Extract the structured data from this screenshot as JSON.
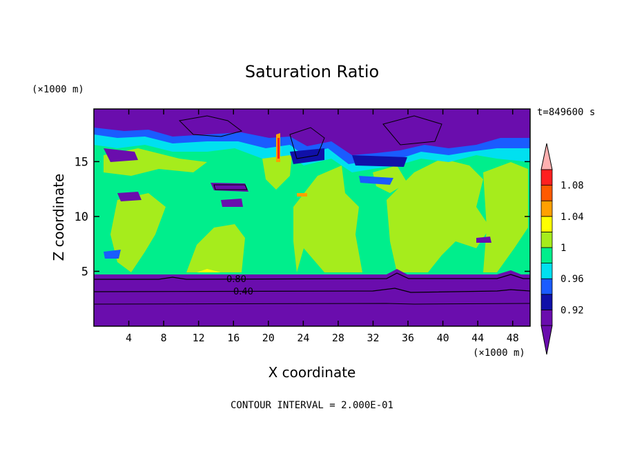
{
  "chart_data": {
    "type": "heatmap",
    "title": "Saturation Ratio",
    "xlabel": "X coordinate",
    "ylabel": "Z coordinate",
    "x_unit": "(×1000 m)",
    "y_unit": "(×1000 m)",
    "time_label": "t=849600 s",
    "footer": "CONTOUR INTERVAL = 2.000E-01",
    "xlim": [
      0,
      50
    ],
    "ylim": [
      0,
      19.8
    ],
    "x_ticks": [
      4,
      8,
      12,
      16,
      20,
      24,
      28,
      32,
      36,
      40,
      44,
      48
    ],
    "y_ticks": [
      5,
      10,
      15
    ],
    "contour_labels": [
      {
        "text": "0.80",
        "x": 16.2,
        "y": 4.4
      },
      {
        "text": "0.40",
        "x": 17.0,
        "y": 3.1
      }
    ],
    "colorbar": {
      "labels": [
        "1.08",
        "1.04",
        "1",
        "0.96",
        "0.92"
      ],
      "label_values": [
        1.08,
        1.04,
        1.0,
        0.96,
        0.92
      ],
      "bounds": [
        0.9,
        0.92,
        0.94,
        0.96,
        0.98,
        1.0,
        1.02,
        1.04,
        1.06,
        1.08,
        1.1
      ],
      "colors": [
        "#6a0dad",
        "#1010a8",
        "#1a5cff",
        "#00e0f0",
        "#00ee8c",
        "#a6ec1c",
        "#ffff00",
        "#ffa000",
        "#ff5a00",
        "#ff2020"
      ],
      "over_color": "#ffb0b0",
      "under_color": "#6a0dad"
    },
    "fields": {
      "lower_purple_layer_top_z": 4.8,
      "contour_lines_z": [
        4.4,
        3.1,
        2.1
      ]
    },
    "grid": false
  }
}
